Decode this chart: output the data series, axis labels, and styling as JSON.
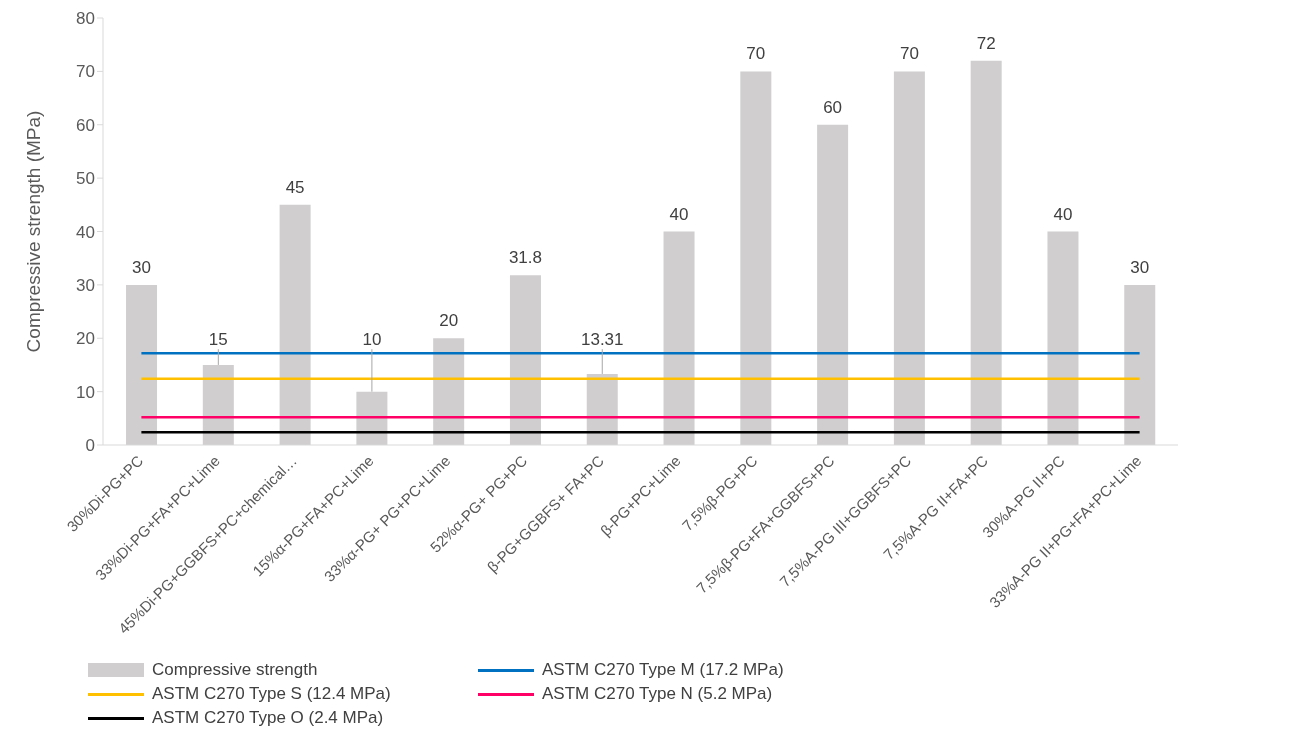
{
  "chart_data": {
    "type": "bar",
    "ylabel": "Compressive strength (MPa)",
    "categories": [
      "30%Di-PG+PC",
      "33%Di-PG+FA+PC+Lime",
      "45%Di-PG+GGBFS+PC+chemical…",
      "15%α-PG+FA+PC+Lime",
      "33%α-PG+ PG+PC+Lime",
      "52%α-PG+ PG+PC",
      "β-PG+GGBFS+ FA+PC",
      "β-PG+PC+Lime",
      "7,5%β-PG+PC",
      "7,5%β-PG+FA+GGBFS+PC",
      "7,5%A-PG III+GGBFS+PC",
      "7,5%A-PG II+FA+PC",
      "30%A-PG II+PC",
      "33%A-PG II+PG+FA+PC+Lime"
    ],
    "series": [
      {
        "name": "Compressive strength",
        "color": "#d0cece",
        "values": [
          30,
          15,
          45,
          10,
          20,
          31.8,
          13.31,
          40,
          70,
          60,
          70,
          72,
          40,
          30
        ],
        "value_labels": [
          "30",
          "15",
          "45",
          "10",
          "20",
          "31.8",
          "13.31",
          "40",
          "70",
          "60",
          "70",
          "72",
          "40",
          "30"
        ]
      },
      {
        "name": "ASTM C270 Type M (17.2 MPa)",
        "type": "line",
        "color": "#0070c0",
        "values": [
          17.2,
          17.2,
          17.2,
          17.2,
          17.2,
          17.2,
          17.2,
          17.2,
          17.2,
          17.2,
          17.2,
          17.2,
          17.2,
          17.2
        ]
      },
      {
        "name": "ASTM C270 Type S (12.4 MPa)",
        "type": "line",
        "color": "#ffc000",
        "values": [
          12.4,
          12.4,
          12.4,
          12.4,
          12.4,
          12.4,
          12.4,
          12.4,
          12.4,
          12.4,
          12.4,
          12.4,
          12.4,
          12.4
        ]
      },
      {
        "name": "ASTM C270 Type N (5.2 MPa)",
        "type": "line",
        "color": "#ff0066",
        "values": [
          5.2,
          5.2,
          5.2,
          5.2,
          5.2,
          5.2,
          5.2,
          5.2,
          5.2,
          5.2,
          5.2,
          5.2,
          5.2,
          5.2
        ]
      },
      {
        "name": "ASTM C270 Type O (2.4 MPa)",
        "type": "line",
        "color": "#000000",
        "values": [
          2.4,
          2.4,
          2.4,
          2.4,
          2.4,
          2.4,
          2.4,
          2.4,
          2.4,
          2.4,
          2.4,
          2.4,
          2.4,
          2.4
        ]
      }
    ],
    "ylim": [
      0,
      80
    ],
    "yticks": [
      0,
      10,
      20,
      30,
      40,
      50,
      60,
      70,
      80
    ],
    "grid": false,
    "legend": "bottom",
    "marker": "none",
    "line_style": "solid"
  }
}
